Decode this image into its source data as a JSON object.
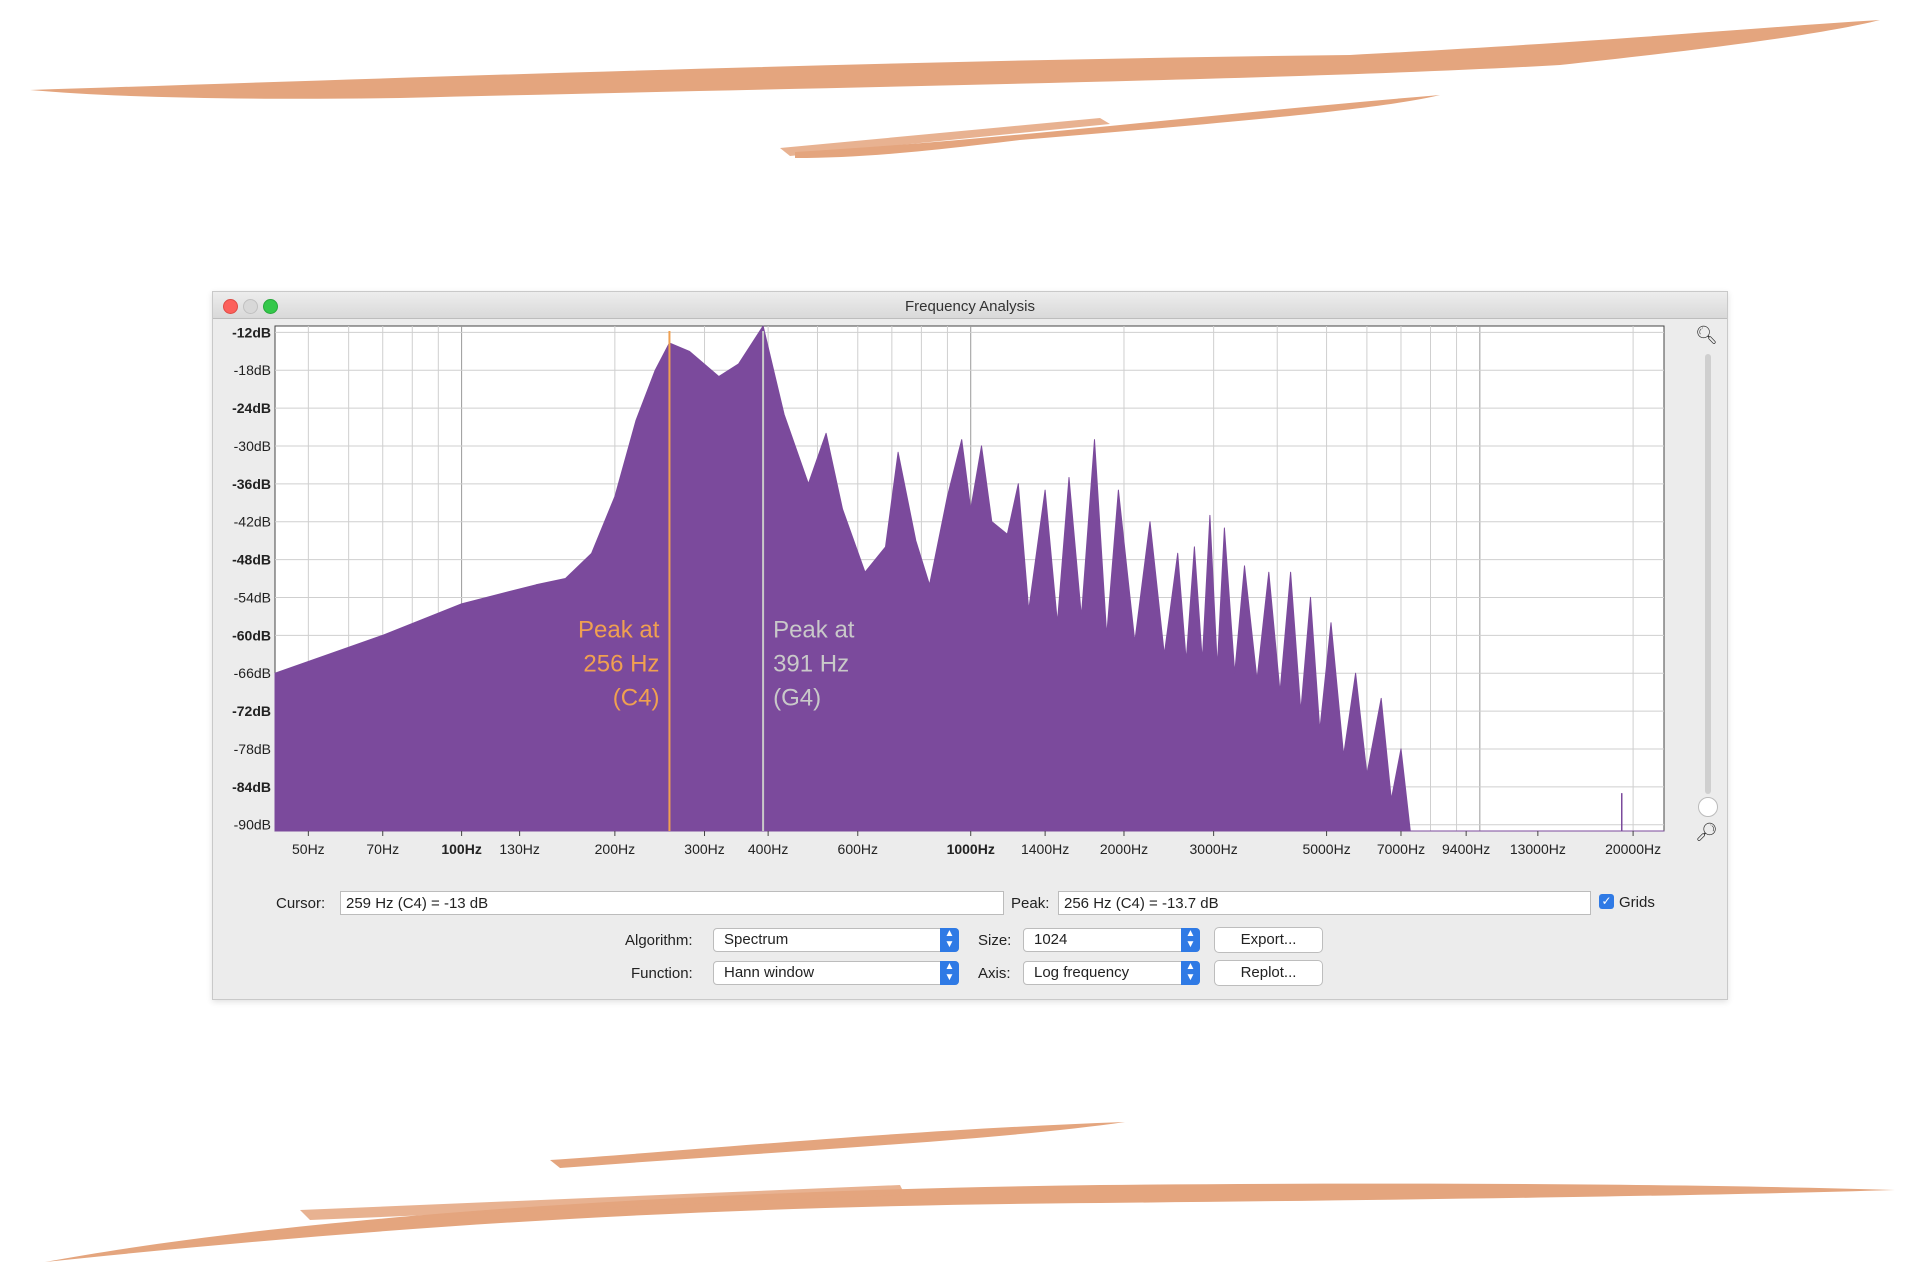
{
  "window": {
    "title": "Frequency Analysis"
  },
  "colors": {
    "brush": "#e4a57e",
    "spectrum": "#7b4a9c",
    "peak1": "#f0a050",
    "peak2": "#c9c9c9",
    "accent": "#2f7ae5"
  },
  "chart_data": {
    "type": "area",
    "yticks": [
      "-12dB",
      "-18dB",
      "-24dB",
      "-30dB",
      "-36dB",
      "-42dB",
      "-48dB",
      "-54dB",
      "-60dB",
      "-66dB",
      "-72dB",
      "-78dB",
      "-84dB",
      "-90dB"
    ],
    "xticks": [
      "50Hz",
      "70Hz",
      "100Hz",
      "130Hz",
      "200Hz",
      "300Hz",
      "400Hz",
      "600Hz",
      "1000Hz",
      "1400Hz",
      "2000Hz",
      "3000Hz",
      "5000Hz",
      "7000Hz",
      "9400Hz",
      "13000Hz",
      "20000Hz"
    ],
    "xscale": "log",
    "xlim": [
      43,
      23000
    ],
    "ylim": [
      -91,
      -11
    ],
    "grid": true,
    "spectrum": [
      [
        43,
        -66
      ],
      [
        70,
        -60
      ],
      [
        100,
        -55
      ],
      [
        140,
        -52
      ],
      [
        160,
        -51
      ],
      [
        180,
        -47
      ],
      [
        200,
        -38
      ],
      [
        220,
        -26
      ],
      [
        240,
        -18
      ],
      [
        256,
        -13.7
      ],
      [
        280,
        -15
      ],
      [
        320,
        -19
      ],
      [
        350,
        -17
      ],
      [
        391,
        -11
      ],
      [
        430,
        -25
      ],
      [
        480,
        -36
      ],
      [
        520,
        -28
      ],
      [
        560,
        -40
      ],
      [
        620,
        -50
      ],
      [
        680,
        -46
      ],
      [
        720,
        -31
      ],
      [
        780,
        -45
      ],
      [
        830,
        -52
      ],
      [
        900,
        -38
      ],
      [
        960,
        -29
      ],
      [
        1000,
        -40
      ],
      [
        1050,
        -30
      ],
      [
        1100,
        -42
      ],
      [
        1180,
        -44
      ],
      [
        1240,
        -36
      ],
      [
        1300,
        -56
      ],
      [
        1400,
        -37
      ],
      [
        1480,
        -58
      ],
      [
        1560,
        -35
      ],
      [
        1650,
        -57
      ],
      [
        1750,
        -29
      ],
      [
        1850,
        -60
      ],
      [
        1950,
        -37
      ],
      [
        2100,
        -61
      ],
      [
        2250,
        -42
      ],
      [
        2400,
        -63
      ],
      [
        2550,
        -47
      ],
      [
        2650,
        -64
      ],
      [
        2750,
        -46
      ],
      [
        2850,
        -64
      ],
      [
        2950,
        -41
      ],
      [
        3050,
        -65
      ],
      [
        3150,
        -43
      ],
      [
        3300,
        -66
      ],
      [
        3450,
        -49
      ],
      [
        3650,
        -67
      ],
      [
        3850,
        -50
      ],
      [
        4050,
        -69
      ],
      [
        4250,
        -50
      ],
      [
        4450,
        -72
      ],
      [
        4650,
        -54
      ],
      [
        4850,
        -75
      ],
      [
        5100,
        -58
      ],
      [
        5400,
        -79
      ],
      [
        5700,
        -66
      ],
      [
        6000,
        -82
      ],
      [
        6400,
        -70
      ],
      [
        6700,
        -86
      ],
      [
        7000,
        -78
      ],
      [
        7300,
        -91
      ],
      [
        23000,
        -91
      ]
    ],
    "annotations": [
      {
        "freq": 256,
        "lines": [
          "Peak at",
          "256 Hz",
          "(C4)"
        ],
        "color": "#f0a050"
      },
      {
        "freq": 391,
        "lines": [
          "Peak at",
          "391 Hz",
          "(G4)"
        ],
        "color": "#c9c9c9"
      }
    ],
    "marker": {
      "freq": 19000
    }
  },
  "readout": {
    "cursor_label": "Cursor:",
    "cursor_value": "259 Hz (C4) = -13 dB",
    "peak_label": "Peak:",
    "peak_value": "256 Hz (C4) = -13.7 dB",
    "grids_label": "Grids"
  },
  "controls": {
    "algorithm_label": "Algorithm:",
    "algorithm_value": "Spectrum",
    "function_label": "Function:",
    "function_value": "Hann window",
    "size_label": "Size:",
    "size_value": "1024",
    "axis_label": "Axis:",
    "axis_value": "Log frequency",
    "export_label": "Export...",
    "replot_label": "Replot..."
  },
  "icons": {
    "zoom_in": "zoom-in-icon",
    "zoom_out": "zoom-out-icon",
    "checkbox": "checkmark-icon"
  }
}
